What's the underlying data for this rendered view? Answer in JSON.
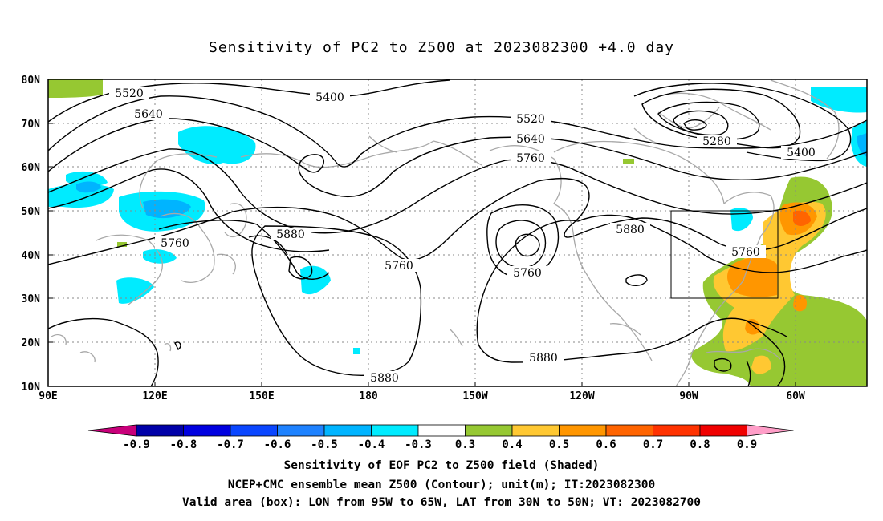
{
  "title": "Sensitivity of PC2 to Z500 at 2023082300 +4.0 day",
  "lat_labels": [
    "80N",
    "70N",
    "60N",
    "50N",
    "40N",
    "30N",
    "20N",
    "10N"
  ],
  "lon_labels": [
    "90E",
    "120E",
    "150E",
    "180",
    "150W",
    "120W",
    "90W",
    "60W"
  ],
  "contour_labels": [
    {
      "name": "contour-label-5520-west",
      "text": "5520"
    },
    {
      "name": "contour-label-5640-west",
      "text": "5640"
    },
    {
      "name": "contour-label-5400-north",
      "text": "5400"
    },
    {
      "name": "contour-label-5520-central",
      "text": "5520"
    },
    {
      "name": "contour-label-5640-central",
      "text": "5640"
    },
    {
      "name": "contour-label-5760-central",
      "text": "5760"
    },
    {
      "name": "contour-label-5280",
      "text": "5280"
    },
    {
      "name": "contour-label-5400-east",
      "text": "5400"
    },
    {
      "name": "contour-label-5760-asia",
      "text": "5760"
    },
    {
      "name": "contour-label-5880-pacific",
      "text": "5880"
    },
    {
      "name": "contour-label-5760-mid",
      "text": "5760"
    },
    {
      "name": "contour-label-5760-low",
      "text": "5760"
    },
    {
      "name": "contour-label-5880-america",
      "text": "5880"
    },
    {
      "name": "contour-label-5760-box",
      "text": "5760"
    },
    {
      "name": "contour-label-5880-south",
      "text": "5880"
    },
    {
      "name": "contour-label-5880-dateline",
      "text": "5880"
    }
  ],
  "colorbar": {
    "colors": [
      "#c8007a",
      "#0000a8",
      "#0000e0",
      "#0a46ff",
      "#1e82ff",
      "#00b4ff",
      "#00ebff",
      "#ffffff",
      "#96c832",
      "#ffc832",
      "#ff9600",
      "#ff6400",
      "#ff3200",
      "#f00000",
      "#ff9ec8"
    ],
    "labels": [
      "-0.9",
      "-0.8",
      "-0.7",
      "-0.6",
      "-0.5",
      "-0.4",
      "-0.3",
      "0.3",
      "0.4",
      "0.5",
      "0.6",
      "0.7",
      "0.8",
      "0.9"
    ]
  },
  "captions": {
    "line1": "Sensitivity of EOF PC2 to Z500 field (Shaded)",
    "line2": "NCEP+CMC ensemble mean Z500 (Contour); unit(m); IT:2023082300",
    "line3": "Valid area (box): LON from 95W to 65W, LAT from 30N to 50N; VT: 2023082700"
  }
}
